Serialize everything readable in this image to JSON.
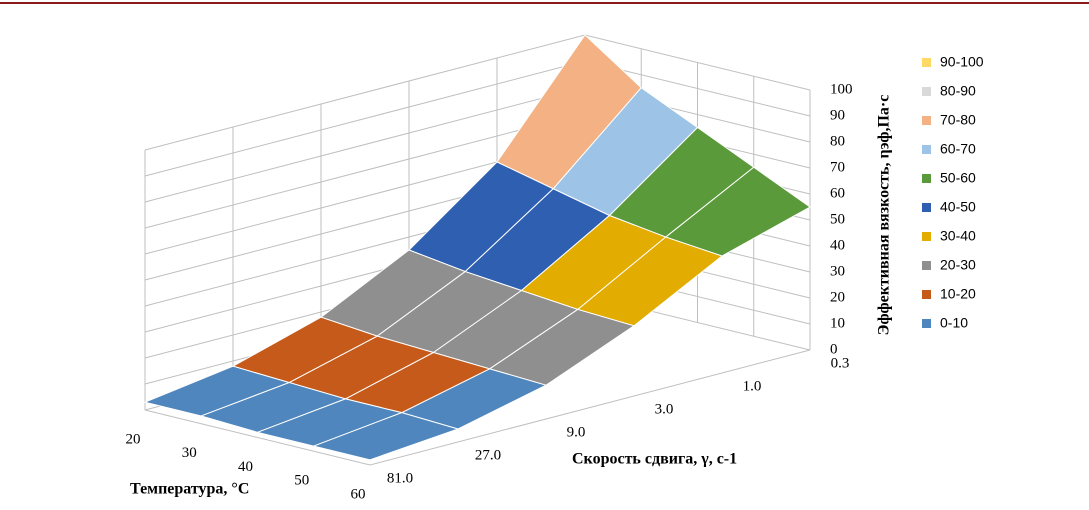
{
  "chart_data": {
    "type": "surface",
    "x_title": "Температура,  °С",
    "y_title": "Скорость  сдвига, γ, с-1",
    "z_title": "Эффективная  вязкость,  ηэф,Па·с",
    "x": [
      20,
      30,
      40,
      50,
      60
    ],
    "categories": [
      "81.0",
      "27.0",
      "9.0",
      "3.0",
      "1.0",
      "0.3"
    ],
    "z": [
      [
        3,
        8,
        18,
        35,
        60,
        100
      ],
      [
        3,
        7,
        16,
        32,
        55,
        85
      ],
      [
        2,
        6,
        15,
        30,
        50,
        75
      ],
      [
        2,
        6,
        14,
        28,
        47,
        65
      ],
      [
        2,
        5,
        13,
        27,
        45,
        55
      ]
    ],
    "zlim": [
      0,
      100
    ],
    "zticks": [
      0,
      10,
      20,
      30,
      40,
      50,
      60,
      70,
      80,
      90,
      100
    ],
    "grid": true,
    "legend_position": "right",
    "bands": [
      {
        "label": "90-100",
        "from": 90,
        "to": 100,
        "color": "#ffd966"
      },
      {
        "label": "80-90",
        "from": 80,
        "to": 90,
        "color": "#d9d9d9"
      },
      {
        "label": "70-80",
        "from": 70,
        "to": 80,
        "color": "#f4b183"
      },
      {
        "label": "60-70",
        "from": 60,
        "to": 70,
        "color": "#9dc3e6"
      },
      {
        "label": "50-60",
        "from": 50,
        "to": 60,
        "color": "#5a9a3a"
      },
      {
        "label": "40-50",
        "from": 40,
        "to": 50,
        "color": "#2f5fb0"
      },
      {
        "label": "30-40",
        "from": 30,
        "to": 40,
        "color": "#e2ac00"
      },
      {
        "label": "20-30",
        "from": 20,
        "to": 30,
        "color": "#8f8f8f"
      },
      {
        "label": "10-20",
        "from": 10,
        "to": 20,
        "color": "#c55a1a"
      },
      {
        "label": "0-10",
        "from": 0,
        "to": 10,
        "color": "#4f86bd"
      }
    ]
  }
}
